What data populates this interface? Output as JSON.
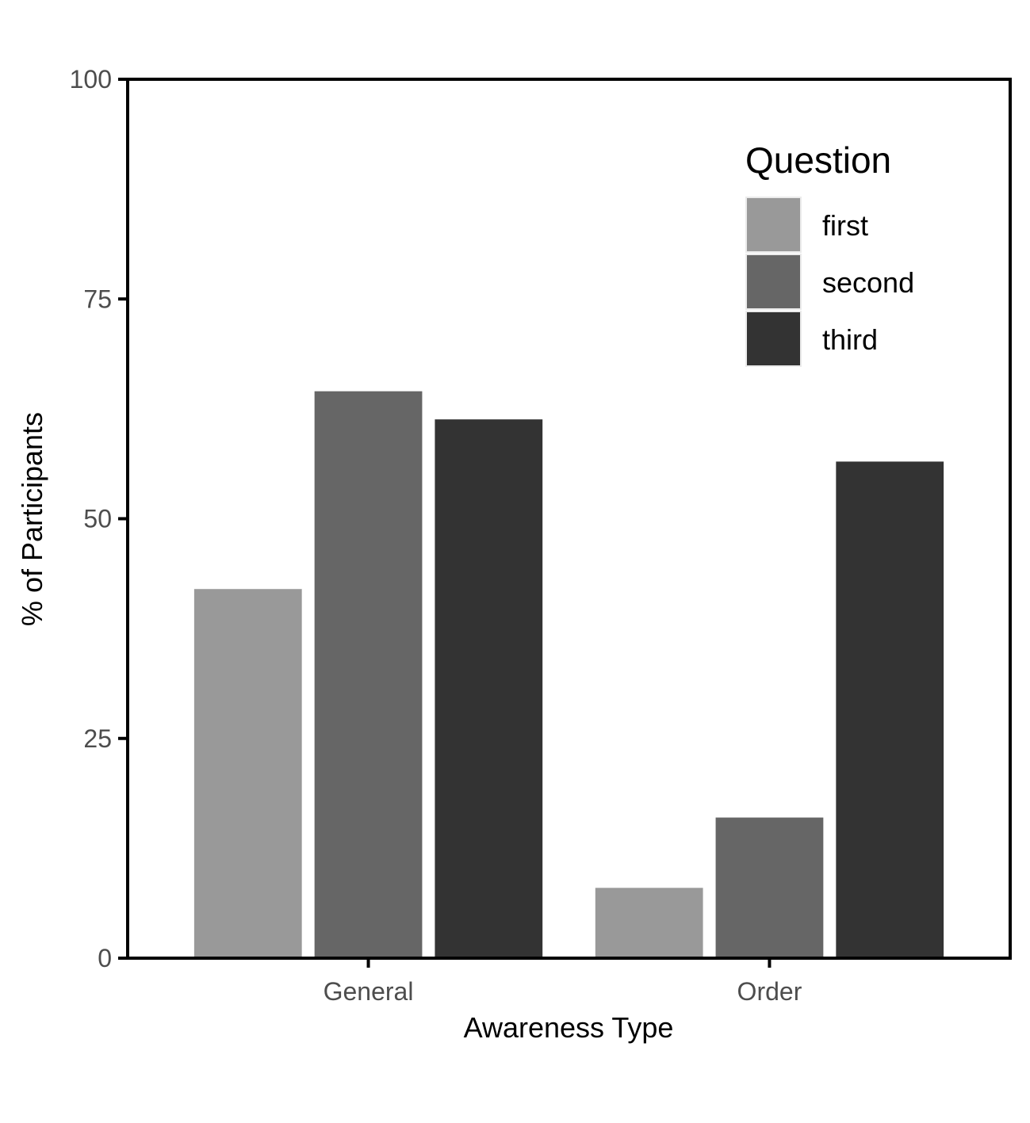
{
  "chart_data": {
    "type": "bar",
    "title": "",
    "xlabel": "Awareness Type",
    "ylabel": "% of Participants",
    "categories": [
      "General",
      "Order"
    ],
    "series": [
      {
        "name": "first",
        "values": [
          42,
          8
        ],
        "color": "#999999"
      },
      {
        "name": "second",
        "values": [
          64.5,
          16
        ],
        "color": "#666666"
      },
      {
        "name": "third",
        "values": [
          61.3,
          56.5
        ],
        "color": "#333333"
      }
    ],
    "ylim": [
      0,
      100
    ],
    "yticks": [
      0,
      25,
      50,
      75,
      100
    ],
    "ytick_labels": [
      "0",
      "25",
      "50",
      "75",
      "100"
    ],
    "legend": {
      "title": "Question",
      "placement": "top-right"
    },
    "grid": false
  }
}
